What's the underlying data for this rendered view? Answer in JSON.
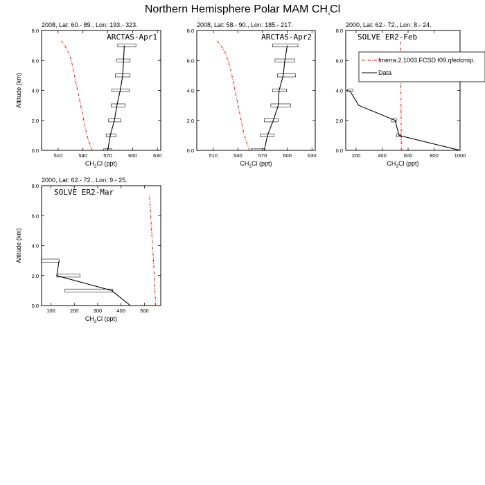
{
  "figure_title": {
    "main": "Northern Hemisphere Polar MAM CH",
    "sub": "3",
    "tail": "Cl"
  },
  "legend": {
    "model_label": "fmerra.2.1003.FCSD.f09.qfedcmip.",
    "data_label": "Data",
    "model_color": "#ff0000",
    "data_color": "#000000"
  },
  "chart_data": [
    {
      "type": "line",
      "header": "2008, Lat:  60.- 89., Lon: 193.- 323.",
      "panel_title": "ARCTAS-Apr1",
      "xlabel": "CH3Cl (ppt)",
      "ylabel": "Altitude (km)",
      "xlim": [
        490,
        634
      ],
      "ylim": [
        0,
        8
      ],
      "xticks": [
        510,
        540,
        570,
        600,
        630
      ],
      "yticks": [
        0,
        2,
        4,
        6,
        8
      ],
      "ytick_labels": [
        "0.0",
        "2.0",
        "4.0",
        "6.0",
        "8.0"
      ],
      "series": [
        {
          "name": "fmerra.2.1003.FCSD.f09.qfedcmip.",
          "style": "dashed",
          "color": "#ff0000",
          "x": [
            551,
            547,
            544,
            541,
            538,
            535,
            532,
            529,
            526,
            522,
            518,
            514
          ],
          "y": [
            0.0,
            0.6,
            1.2,
            2.0,
            2.8,
            3.6,
            4.4,
            5.2,
            6.0,
            6.6,
            7.0,
            7.3
          ]
        },
        {
          "name": "Data",
          "style": "solid",
          "color": "#000000",
          "x": [
            570,
            573,
            578,
            581,
            585,
            588,
            589,
            590
          ],
          "y": [
            0.0,
            1.0,
            2.0,
            3.0,
            4.0,
            5.0,
            6.0,
            7.0
          ]
        }
      ],
      "boxes": [
        {
          "x0": 565,
          "x1": 575,
          "y0": 0.0,
          "y1": 0.1
        },
        {
          "x0": 568,
          "x1": 580,
          "y0": 0.9,
          "y1": 1.1
        },
        {
          "x0": 571,
          "x1": 586,
          "y0": 1.9,
          "y1": 2.1
        },
        {
          "x0": 574,
          "x1": 591,
          "y0": 2.9,
          "y1": 3.1
        },
        {
          "x0": 575,
          "x1": 596,
          "y0": 3.9,
          "y1": 4.1
        },
        {
          "x0": 579,
          "x1": 597,
          "y0": 4.9,
          "y1": 5.1
        },
        {
          "x0": 581,
          "x1": 597,
          "y0": 5.9,
          "y1": 6.1
        },
        {
          "x0": 582,
          "x1": 604,
          "y0": 6.9,
          "y1": 7.1
        }
      ]
    },
    {
      "type": "line",
      "header": "2008, Lat:  58.- 90., Lon: 185.- 217.",
      "panel_title": "ARCTAS-Apr2",
      "xlabel": "CH3Cl (ppt)",
      "ylabel": "",
      "xlim": [
        490,
        634
      ],
      "ylim": [
        0,
        8
      ],
      "xticks": [
        510,
        540,
        570,
        600,
        630
      ],
      "yticks": [
        0,
        2,
        4,
        6,
        8
      ],
      "ytick_labels": [
        "0.0",
        "2.0",
        "4.0",
        "6.0",
        "8.0"
      ],
      "series": [
        {
          "name": "fmerra.2.1003.FCSD.f09.qfedcmip.",
          "style": "dashed",
          "color": "#ff0000",
          "x": [
            554,
            550,
            547,
            544,
            541,
            538,
            535,
            532,
            528,
            524,
            519,
            515
          ],
          "y": [
            0.0,
            0.6,
            1.2,
            2.0,
            2.8,
            3.6,
            4.4,
            5.2,
            6.0,
            6.6,
            7.0,
            7.3
          ]
        },
        {
          "name": "Data",
          "style": "solid",
          "color": "#000000",
          "x": [
            572,
            576,
            583,
            589,
            590,
            595,
            597,
            600
          ],
          "y": [
            0.0,
            1.0,
            2.0,
            3.0,
            4.0,
            5.0,
            6.0,
            7.0
          ]
        }
      ],
      "boxes": [
        {
          "x0": 556,
          "x1": 572,
          "y0": 0.0,
          "y1": 0.1
        },
        {
          "x0": 567,
          "x1": 584,
          "y0": 0.9,
          "y1": 1.1
        },
        {
          "x0": 572,
          "x1": 589,
          "y0": 1.9,
          "y1": 2.1
        },
        {
          "x0": 580,
          "x1": 604,
          "y0": 2.9,
          "y1": 3.1
        },
        {
          "x0": 582,
          "x1": 599,
          "y0": 3.9,
          "y1": 4.1
        },
        {
          "x0": 588,
          "x1": 610,
          "y0": 4.9,
          "y1": 5.1
        },
        {
          "x0": 585,
          "x1": 609,
          "y0": 5.9,
          "y1": 6.1
        },
        {
          "x0": 582,
          "x1": 613,
          "y0": 6.9,
          "y1": 7.1
        }
      ]
    },
    {
      "type": "line",
      "header": "2000, Lat: 62.- 72., Lon: 8.- 24.",
      "panel_title": "SOLVE ER2-Feb",
      "xlabel": "CH3Cl (ppt)",
      "ylabel": "",
      "xlim": [
        120,
        1000
      ],
      "ylim": [
        0,
        8
      ],
      "xticks": [
        200,
        400,
        600,
        800,
        1000
      ],
      "yticks": [
        0,
        2,
        4,
        6,
        8
      ],
      "ytick_labels": [
        "0.0",
        "2.0",
        "4.0",
        "6.0",
        "8.0"
      ],
      "show_legend": true,
      "series": [
        {
          "name": "fmerra.2.1003.FCSD.f09.qfedcmip.",
          "style": "dashed",
          "color": "#ff0000",
          "x": [
            548,
            547,
            546,
            545,
            544,
            543,
            542
          ],
          "y": [
            0.0,
            1.2,
            2.4,
            3.6,
            4.8,
            6.0,
            7.3
          ]
        },
        {
          "name": "Data",
          "style": "solid",
          "color": "#000000",
          "x": [
            1000,
            530,
            500,
            220,
            150
          ],
          "y": [
            0.0,
            1.0,
            2.0,
            3.0,
            4.0
          ]
        }
      ],
      "boxes": [
        {
          "x0": 510,
          "x1": 545,
          "y0": 0.9,
          "y1": 1.1
        },
        {
          "x0": 470,
          "x1": 510,
          "y0": 1.9,
          "y1": 2.1
        },
        {
          "x0": 135,
          "x1": 175,
          "y0": 3.9,
          "y1": 4.1
        }
      ]
    },
    {
      "type": "line",
      "header": "2000, Lat: 62.- 72., Lon: 9.- 25.",
      "panel_title": "SOLVE ER2-Mar",
      "xlabel": "CH3Cl (ppt)",
      "ylabel": "Altitude (km)",
      "xlim": [
        60,
        570
      ],
      "ylim": [
        0,
        8
      ],
      "xticks": [
        100,
        200,
        300,
        400,
        500
      ],
      "yticks": [
        0,
        2,
        4,
        6,
        8
      ],
      "ytick_labels": [
        "0.0",
        "2.0",
        "4.0",
        "6.0",
        "8.0"
      ],
      "series": [
        {
          "name": "fmerra.2.1003.FCSD.f09.qfedcmip.",
          "style": "dashed",
          "color": "#ff0000",
          "x": [
            548,
            545,
            542,
            539,
            535,
            531,
            527,
            522
          ],
          "y": [
            0.0,
            1.0,
            2.0,
            3.0,
            4.0,
            5.0,
            6.0,
            7.4
          ]
        },
        {
          "name": "Data",
          "style": "solid",
          "color": "#000000",
          "x": [
            440,
            360,
            125,
            135
          ],
          "y": [
            0.0,
            1.0,
            2.0,
            3.0
          ]
        }
      ],
      "boxes": [
        {
          "x0": 160,
          "x1": 365,
          "y0": 0.9,
          "y1": 1.1
        },
        {
          "x0": 125,
          "x1": 225,
          "y0": 1.9,
          "y1": 2.1
        },
        {
          "x0": 60,
          "x1": 135,
          "y0": 2.9,
          "y1": 3.1
        }
      ]
    }
  ]
}
